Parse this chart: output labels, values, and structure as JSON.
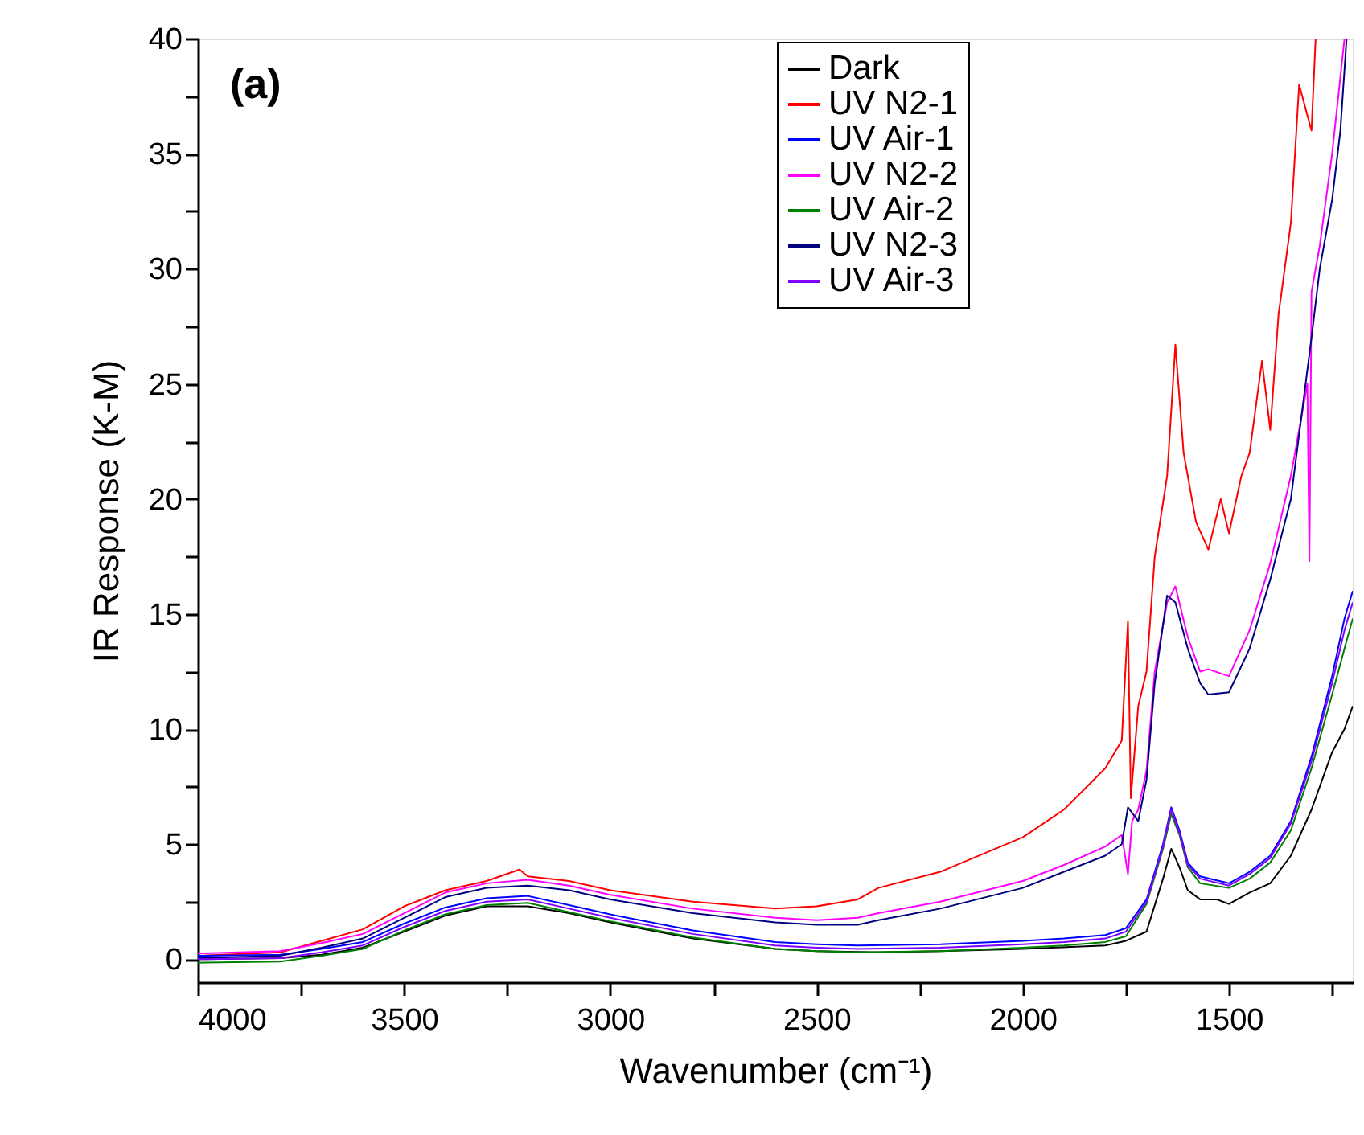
{
  "chart_data": {
    "type": "line",
    "xlabel": "Wavenumber (cm⁻¹)",
    "ylabel": "IR Response (K-M)",
    "annotations": [
      "(a)"
    ],
    "xlim": [
      4000,
      1200
    ],
    "ylim": [
      -1,
      40
    ],
    "xticks": [
      4000,
      {
        "value": 3750,
        "label": null
      },
      3500,
      {
        "value": 3250,
        "label": null
      },
      3000,
      {
        "value": 2750,
        "label": null
      },
      2500,
      {
        "value": 2250,
        "label": null
      },
      2000,
      {
        "value": 1750,
        "label": null
      },
      1500,
      {
        "value": 1250,
        "label": null
      }
    ],
    "yticks": [
      0,
      {
        "value": 2.5,
        "label": null
      },
      5,
      {
        "value": 7.5,
        "label": null
      },
      10,
      {
        "value": 12.5,
        "label": null
      },
      15,
      {
        "value": 17.5,
        "label": null
      },
      20,
      {
        "value": 22.5,
        "label": null
      },
      25,
      {
        "value": 27.5,
        "label": null
      },
      30,
      {
        "value": 32.5,
        "label": null
      },
      35,
      {
        "value": 37.5,
        "label": null
      },
      40
    ],
    "grid": false,
    "legend": "top",
    "marker": "none",
    "line_style": "solid",
    "series": [
      {
        "name": "Dark",
        "color": "#000000",
        "x": [
          4000,
          3800,
          3700,
          3600,
          3500,
          3400,
          3300,
          3200,
          3100,
          3000,
          2800,
          2600,
          2500,
          2350,
          2200,
          2000,
          1800,
          1750,
          1700,
          1660,
          1640,
          1620,
          1600,
          1570,
          1530,
          1500,
          1450,
          1400,
          1350,
          1300,
          1250,
          1220,
          1200
        ],
        "values": [
          0,
          0.05,
          0.2,
          0.5,
          1.2,
          1.9,
          2.3,
          2.3,
          2.0,
          1.6,
          0.9,
          0.45,
          0.35,
          0.3,
          0.35,
          0.45,
          0.6,
          0.8,
          1.2,
          3.5,
          4.8,
          4.0,
          3.0,
          2.6,
          2.6,
          2.4,
          2.9,
          3.3,
          4.5,
          6.5,
          9.0,
          10.0,
          11.0
        ]
      },
      {
        "name": "UV N2-1",
        "color": "#ff0000",
        "x": [
          4000,
          3800,
          3700,
          3600,
          3500,
          3400,
          3300,
          3220,
          3200,
          3100,
          3000,
          2800,
          2600,
          2500,
          2400,
          2350,
          2200,
          2000,
          1900,
          1800,
          1760,
          1745,
          1738,
          1720,
          1700,
          1680,
          1650,
          1630,
          1610,
          1580,
          1550,
          1520,
          1500,
          1470,
          1450,
          1420,
          1400,
          1380,
          1350,
          1330,
          1300,
          1290
        ],
        "values": [
          0.15,
          0.3,
          0.8,
          1.3,
          2.3,
          3.0,
          3.4,
          3.9,
          3.6,
          3.4,
          3.0,
          2.5,
          2.2,
          2.3,
          2.6,
          3.1,
          3.8,
          5.3,
          6.5,
          8.3,
          9.5,
          14.7,
          7.0,
          11.0,
          12.5,
          17.5,
          21.0,
          26.7,
          22.0,
          19.0,
          17.8,
          20.0,
          18.5,
          21.0,
          22.0,
          26.0,
          23.0,
          28.0,
          32.0,
          38.0,
          36.0,
          40.0
        ]
      },
      {
        "name": "UV Air-1",
        "color": "#0000ff",
        "x": [
          4000,
          3800,
          3700,
          3600,
          3500,
          3400,
          3300,
          3200,
          3100,
          3000,
          2800,
          2600,
          2500,
          2400,
          2200,
          2000,
          1900,
          1800,
          1750,
          1700,
          1660,
          1640,
          1620,
          1600,
          1570,
          1500,
          1450,
          1400,
          1350,
          1300,
          1250,
          1220,
          1200
        ],
        "values": [
          0.15,
          0.2,
          0.45,
          0.75,
          1.55,
          2.25,
          2.65,
          2.75,
          2.35,
          1.95,
          1.25,
          0.75,
          0.65,
          0.6,
          0.65,
          0.8,
          0.9,
          1.05,
          1.35,
          2.6,
          5.0,
          6.6,
          5.6,
          4.2,
          3.6,
          3.3,
          3.8,
          4.5,
          6.0,
          8.8,
          12.3,
          14.8,
          16.0
        ]
      },
      {
        "name": "UV N2-2",
        "color": "#ff00ff",
        "x": [
          4000,
          3800,
          3700,
          3600,
          3500,
          3400,
          3300,
          3200,
          3100,
          3000,
          2800,
          2600,
          2500,
          2400,
          2350,
          2200,
          2000,
          1900,
          1800,
          1760,
          1745,
          1735,
          1720,
          1700,
          1680,
          1650,
          1630,
          1600,
          1570,
          1550,
          1500,
          1450,
          1400,
          1350,
          1310,
          1305,
          1300,
          1280,
          1250,
          1220
        ],
        "values": [
          0.25,
          0.35,
          0.7,
          1.1,
          2.0,
          2.9,
          3.3,
          3.45,
          3.2,
          2.8,
          2.2,
          1.8,
          1.7,
          1.8,
          2.0,
          2.5,
          3.4,
          4.1,
          4.9,
          5.4,
          3.7,
          6.0,
          6.5,
          8.2,
          12.5,
          15.5,
          16.2,
          14.0,
          12.5,
          12.6,
          12.3,
          14.3,
          17.2,
          21.0,
          25.0,
          17.3,
          29.0,
          31.0,
          35.0,
          40.0
        ]
      },
      {
        "name": "UV Air-2",
        "color": "#008000",
        "x": [
          4000,
          3800,
          3700,
          3600,
          3500,
          3400,
          3300,
          3200,
          3100,
          3000,
          2800,
          2600,
          2500,
          2400,
          2200,
          2000,
          1900,
          1800,
          1750,
          1700,
          1660,
          1640,
          1620,
          1600,
          1570,
          1500,
          1450,
          1400,
          1350,
          1300,
          1250,
          1220,
          1200
        ],
        "values": [
          -0.15,
          -0.1,
          0.15,
          0.45,
          1.25,
          1.95,
          2.35,
          2.45,
          2.05,
          1.65,
          0.95,
          0.45,
          0.35,
          0.3,
          0.35,
          0.5,
          0.6,
          0.75,
          1.0,
          2.4,
          4.8,
          6.3,
          5.4,
          4.0,
          3.3,
          3.1,
          3.5,
          4.2,
          5.6,
          8.3,
          11.5,
          13.5,
          14.8
        ]
      },
      {
        "name": "UV N2-3",
        "color": "#000080",
        "x": [
          4000,
          3800,
          3700,
          3600,
          3500,
          3400,
          3300,
          3200,
          3100,
          3000,
          2800,
          2600,
          2500,
          2400,
          2350,
          2200,
          2000,
          1900,
          1800,
          1760,
          1745,
          1720,
          1700,
          1680,
          1650,
          1630,
          1600,
          1570,
          1550,
          1500,
          1450,
          1400,
          1350,
          1300,
          1280,
          1250,
          1230,
          1215
        ],
        "values": [
          0.05,
          0.15,
          0.5,
          0.9,
          1.8,
          2.7,
          3.1,
          3.2,
          3.0,
          2.6,
          2.0,
          1.6,
          1.5,
          1.5,
          1.7,
          2.2,
          3.1,
          3.8,
          4.5,
          5.0,
          6.6,
          6.0,
          7.8,
          12.0,
          15.8,
          15.5,
          13.5,
          12.0,
          11.5,
          11.6,
          13.5,
          16.5,
          20.0,
          27.0,
          30.0,
          33.0,
          36.0,
          40.0
        ]
      },
      {
        "name": "UV Air-3",
        "color": "#8000ff",
        "x": [
          4000,
          3800,
          3700,
          3600,
          3500,
          3400,
          3300,
          3200,
          3100,
          3000,
          2800,
          2600,
          2500,
          2400,
          2200,
          2000,
          1900,
          1800,
          1750,
          1700,
          1660,
          1640,
          1620,
          1600,
          1570,
          1500,
          1450,
          1400,
          1350,
          1300,
          1250,
          1220,
          1200
        ],
        "values": [
          0,
          0.05,
          0.3,
          0.6,
          1.4,
          2.1,
          2.5,
          2.6,
          2.2,
          1.8,
          1.1,
          0.6,
          0.5,
          0.45,
          0.5,
          0.65,
          0.75,
          0.9,
          1.2,
          2.5,
          4.9,
          6.5,
          5.5,
          4.1,
          3.5,
          3.2,
          3.7,
          4.4,
          5.9,
          8.6,
          12.0,
          14.3,
          15.5
        ]
      }
    ]
  }
}
